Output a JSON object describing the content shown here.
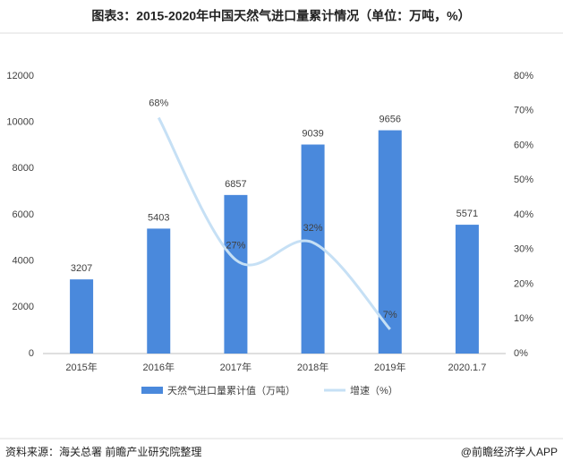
{
  "chart_data": {
    "type": "bar-line",
    "title": "图表3：2015-2020年中国天然气进口量累计情况（单位：万吨，%）",
    "categories": [
      "2015年",
      "2016年",
      "2017年",
      "2018年",
      "2019年",
      "2020.1.7"
    ],
    "series": [
      {
        "name": "天然气进口量累计值（万吨）",
        "type": "bar",
        "color": "#4a89dc",
        "values": [
          3207,
          5403,
          6857,
          9039,
          9656,
          5571
        ]
      },
      {
        "name": "增速（%）",
        "type": "line",
        "axis": "y2",
        "color": "#c6e0f5",
        "values": [
          null,
          68,
          27,
          32,
          7,
          null
        ],
        "value_labels": [
          null,
          "68%",
          "27%",
          "32%",
          "7%",
          null
        ]
      }
    ],
    "ylim": [
      0,
      12000
    ],
    "yticks": [
      0,
      2000,
      4000,
      6000,
      8000,
      10000,
      12000
    ],
    "y2lim": [
      0,
      80
    ],
    "y2ticks": [
      {
        "value": 0,
        "label": "0%"
      },
      {
        "value": 10,
        "label": "10%"
      },
      {
        "value": 20,
        "label": "20%"
      },
      {
        "value": 30,
        "label": "30%"
      },
      {
        "value": 40,
        "label": "40%"
      },
      {
        "value": 50,
        "label": "50%"
      },
      {
        "value": 60,
        "label": "60%"
      },
      {
        "value": 70,
        "label": "70%"
      },
      {
        "value": 80,
        "label": "80%"
      }
    ],
    "source": "资料来源：海关总署 前瞻产业研究院整理",
    "credit": "@前瞻经济学人APP"
  }
}
